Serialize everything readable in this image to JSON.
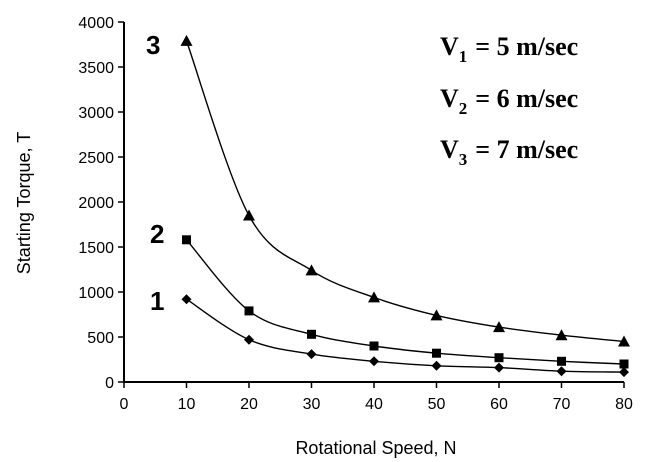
{
  "chart_data": {
    "type": "line",
    "title": "",
    "xlabel": "Rotational Speed, N",
    "ylabel": "Starting Torque, T",
    "xlim": [
      0,
      80
    ],
    "ylim": [
      0,
      4000
    ],
    "x_ticks": [
      "0",
      "10",
      "20",
      "30",
      "40",
      "50",
      "60",
      "70",
      "80"
    ],
    "y_ticks": [
      "0",
      "500",
      "1000",
      "1500",
      "2000",
      "2500",
      "3000",
      "3500",
      "4000"
    ],
    "grid": false,
    "x": [
      10,
      20,
      30,
      40,
      50,
      60,
      70,
      80
    ],
    "series": [
      {
        "label": "1",
        "marker": "diamond",
        "values": [
          920,
          470,
          310,
          230,
          180,
          160,
          120,
          110
        ]
      },
      {
        "label": "2",
        "marker": "square",
        "values": [
          1580,
          790,
          530,
          400,
          320,
          270,
          230,
          200
        ]
      },
      {
        "label": "3",
        "marker": "triangle",
        "values": [
          3790,
          1850,
          1240,
          940,
          740,
          610,
          520,
          450
        ]
      }
    ],
    "legend": [
      {
        "var": "V",
        "sub": "1",
        "text": "= 5 m/sec"
      },
      {
        "var": "V",
        "sub": "2",
        "text": "= 6 m/sec"
      },
      {
        "var": "V",
        "sub": "3",
        "text": "= 7 m/sec"
      }
    ],
    "legend_placement": "top-right"
  }
}
